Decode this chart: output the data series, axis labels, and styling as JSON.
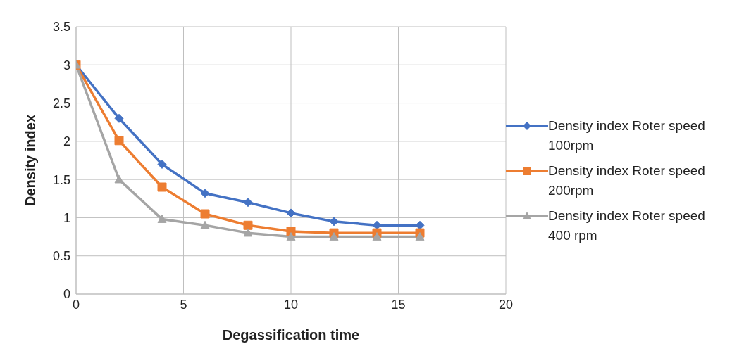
{
  "chart_data": {
    "type": "line",
    "xlabel": "Degassification time",
    "ylabel": "Density index",
    "x": [
      0,
      2,
      4,
      6,
      8,
      10,
      12,
      14,
      16
    ],
    "series": [
      {
        "name": "Density index Roter speed 100rpm",
        "color": "#4472c4",
        "marker": "diamond",
        "values": [
          3,
          2.3,
          1.7,
          1.32,
          1.2,
          1.06,
          0.95,
          0.9,
          0.9
        ]
      },
      {
        "name": "Density index Roter speed 200rpm",
        "color": "#ed7d31",
        "marker": "square",
        "values": [
          3,
          2.01,
          1.4,
          1.05,
          0.9,
          0.82,
          0.8,
          0.8,
          0.8
        ]
      },
      {
        "name": "Density index Roter speed 400 rpm",
        "color": "#a5a5a5",
        "marker": "triangle",
        "values": [
          3,
          1.5,
          0.98,
          0.9,
          0.8,
          0.75,
          0.75,
          0.75,
          0.75
        ]
      }
    ],
    "xlim": [
      0,
      20
    ],
    "xticks": [
      0,
      5,
      10,
      15,
      20
    ],
    "ylim": [
      0,
      3.5
    ],
    "yticks": [
      0,
      0.5,
      1,
      1.5,
      2,
      2.5,
      3,
      3.5
    ],
    "grid": true,
    "legend": "right"
  }
}
